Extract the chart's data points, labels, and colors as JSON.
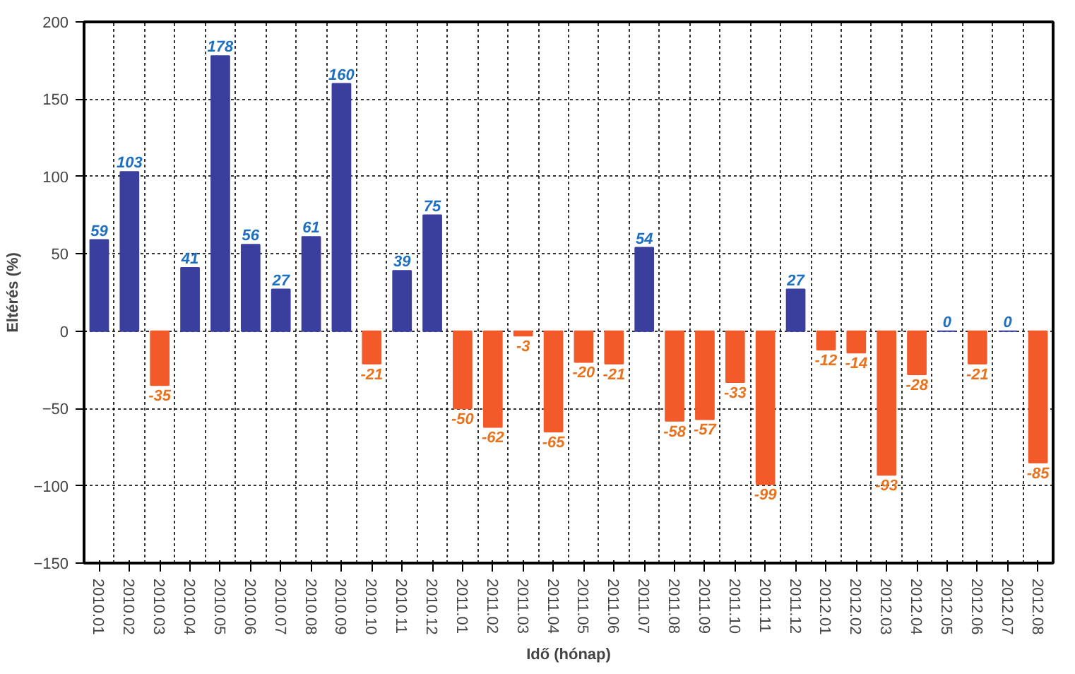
{
  "chart_data": {
    "type": "bar",
    "xlabel": "Idő (hónap)",
    "ylabel": "Eltérés (%)",
    "categories": [
      "2010.01",
      "2010.02",
      "2010.03",
      "2010.04",
      "2010.05",
      "2010.06",
      "2010.07",
      "2010.08",
      "2010.09",
      "2010.10",
      "2010.11",
      "2010.12",
      "2011.01",
      "2011.02",
      "2011.03",
      "2011.04",
      "2011.05",
      "2011.06",
      "2011.07",
      "2011.08",
      "2011.09",
      "2011.10",
      "2011.11",
      "2011.12",
      "2012.01",
      "2012.02",
      "2012.03",
      "2012.04",
      "2012.05",
      "2012.06",
      "2012.07",
      "2012.08"
    ],
    "values": [
      59,
      103,
      -35,
      41,
      178,
      56,
      27,
      61,
      160,
      -21,
      39,
      75,
      -50,
      -62,
      -3,
      -65,
      -20,
      -21,
      54,
      -58,
      -57,
      -33,
      -99,
      27,
      -12,
      -14,
      -93,
      -28,
      0,
      -21,
      0,
      -85
    ],
    "colors": [
      "#3a3f9e",
      "#3a3f9e",
      "#f25a2a",
      "#3a3f9e",
      "#3a3f9e",
      "#3a3f9e",
      "#3a3f9e",
      "#3a3f9e",
      "#3a3f9e",
      "#f25a2a",
      "#3a3f9e",
      "#3a3f9e",
      "#f25a2a",
      "#f25a2a",
      "#f25a2a",
      "#f25a2a",
      "#f25a2a",
      "#f25a2a",
      "#3a3f9e",
      "#f25a2a",
      "#f25a2a",
      "#f25a2a",
      "#f25a2a",
      "#3a3f9e",
      "#f25a2a",
      "#f25a2a",
      "#f25a2a",
      "#f25a2a",
      "#3a3f9e",
      "#f25a2a",
      "#3a3f9e",
      "#f25a2a"
    ],
    "ylim": [
      -150,
      200
    ],
    "yticks": [
      -150,
      -100,
      -50,
      0,
      50,
      100,
      150,
      200
    ],
    "grid": true,
    "data_labels": true
  }
}
